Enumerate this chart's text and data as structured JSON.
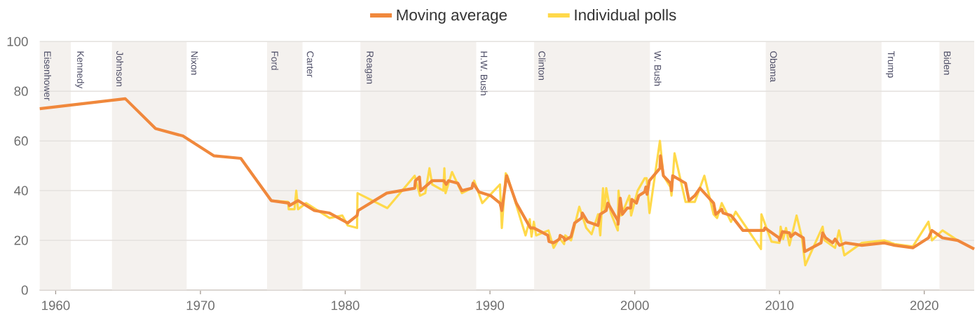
{
  "chart_data": {
    "type": "line",
    "xlim": [
      1958.9,
      2023.45
    ],
    "ylim": [
      0,
      100
    ],
    "xticks": [
      1960,
      1970,
      1980,
      1990,
      2000,
      2010,
      2020
    ],
    "yticks": [
      0,
      20,
      40,
      60,
      80,
      100
    ],
    "grid": "y",
    "legend": "top",
    "series": [
      {
        "name": "Moving average",
        "color": "#f0883c",
        "x": [
          1958.9,
          1964.81,
          1966.9,
          1968.79,
          1970.94,
          1972.79,
          1974.89,
          1976.1,
          1976.15,
          1976.74,
          1977.87,
          1978.92,
          1980.17,
          1980.82,
          1980.89,
          1982.87,
          1984.8,
          1984.85,
          1985.13,
          1985.21,
          1986.01,
          1986.82,
          1986.98,
          1987.14,
          1987.78,
          1988.06,
          1988.75,
          1988.83,
          1989.24,
          1990.05,
          1990.69,
          1990.82,
          1991.15,
          1991.82,
          1992.79,
          1993.03,
          1994.0,
          1994.08,
          1994.4,
          1994.8,
          1994.85,
          1995.12,
          1995.17,
          1995.6,
          1995.85,
          1996.33,
          1996.38,
          1996.74,
          1997.46,
          1997.62,
          1998.03,
          1998.14,
          1998.83,
          1998.85,
          1999.0,
          1999.15,
          1999.48,
          1999.72,
          1999.8,
          2000.12,
          2000.28,
          2000.69,
          2000.77,
          2000.85,
          2001.01,
          2001.74,
          2001.78,
          2001.98,
          2002.47,
          2002.54,
          2002.62,
          2003.51,
          2003.75,
          2004.15,
          2004.51,
          2005.45,
          2005.6,
          2006.01,
          2006.1,
          2006.65,
          2006.8,
          2007.47,
          2008.92,
          2008.99,
          2009.97,
          2010.0,
          2010.2,
          2010.69,
          2010.77,
          2011.09,
          2011.65,
          2011.74,
          2012.87,
          2012.98,
          2013.19,
          2013.67,
          2013.84,
          2014.16,
          2014.56,
          2015.69,
          2017.23,
          2017.95,
          2019.21,
          2020.29,
          2020.53,
          2021.26,
          2022.31,
          2023.45
        ],
        "values": [
          73,
          77,
          65,
          62,
          54,
          53,
          36,
          35,
          34,
          36,
          32,
          31,
          27,
          30,
          32,
          39,
          41,
          44,
          45.5,
          40,
          44,
          44,
          42.5,
          44,
          43,
          40,
          41,
          43,
          39.5,
          38,
          35,
          32,
          46,
          35,
          25,
          25,
          22,
          19.5,
          19,
          20.5,
          22,
          21,
          20,
          21.5,
          27,
          29,
          31,
          27.5,
          26,
          30.5,
          32,
          35,
          28,
          26.5,
          37,
          30.5,
          33,
          33,
          36.5,
          35,
          38,
          39.5,
          41.5,
          38.5,
          44,
          49,
          54,
          46,
          43,
          40,
          46,
          43,
          36,
          38,
          41,
          35,
          30.5,
          32.5,
          31,
          30,
          29,
          24,
          24,
          25,
          21,
          20,
          23.5,
          23,
          21.5,
          23,
          21,
          15.5,
          19,
          23,
          21,
          19,
          20.5,
          18,
          19,
          18,
          19,
          18,
          17,
          21,
          24,
          21,
          20,
          16.5
        ]
      },
      {
        "name": "Individual polls",
        "color": "#ffd94a",
        "x": [
          1974.89,
          1976.05,
          1976.1,
          1976.5,
          1976.62,
          1976.74,
          1977.3,
          1978.92,
          1979.8,
          1980.17,
          1980.82,
          1980.85,
          1982.91,
          1984.8,
          1985.17,
          1985.53,
          1985.82,
          1986.01,
          1986.78,
          1986.85,
          1986.93,
          1987.38,
          1988.06,
          1988.75,
          1988.91,
          1989.47,
          1990.69,
          1990.82,
          1991.09,
          1991.2,
          1992.46,
          1992.75,
          1992.87,
          1993.03,
          1993.19,
          1994.04,
          1994.4,
          1994.8,
          1995.12,
          1995.2,
          1995.6,
          1996.17,
          1996.65,
          1997.02,
          1997.47,
          1997.62,
          1997.81,
          1997.92,
          1998.03,
          1998.35,
          1998.83,
          1998.88,
          1999.07,
          1999.63,
          1999.75,
          2000.2,
          2000.69,
          2000.82,
          2001.02,
          2001.74,
          2001.98,
          2002.46,
          2002.54,
          2002.75,
          2003.51,
          2004.15,
          2004.81,
          2005.45,
          2005.69,
          2006.01,
          2006.65,
          2006.97,
          2008.72,
          2008.75,
          2009.45,
          2010.0,
          2010.08,
          2010.25,
          2010.45,
          2010.69,
          2011.18,
          2011.55,
          2011.78,
          2012.71,
          2012.98,
          2013.11,
          2013.84,
          2014.11,
          2014.48,
          2015.69,
          2017.23,
          2017.95,
          2019.21,
          2020.29,
          2020.53,
          2021.26,
          2022.31
        ],
        "values": [
          36,
          35.5,
          32.5,
          32.5,
          40,
          32.5,
          35,
          29,
          30,
          26,
          25,
          39,
          33,
          46,
          38,
          39,
          49,
          42.5,
          40,
          49,
          39,
          47.5,
          39,
          41,
          44,
          35,
          42.5,
          25,
          47,
          46,
          22,
          28.5,
          21.5,
          27.5,
          22,
          24,
          17,
          21,
          18.5,
          22,
          20,
          33.5,
          25,
          22.5,
          30.5,
          22,
          41,
          31.5,
          41,
          31,
          24,
          40,
          30,
          38,
          30,
          40,
          45,
          45,
          31,
          60,
          46,
          41.5,
          38,
          55,
          35.5,
          35.5,
          46,
          30.5,
          29,
          35,
          27.5,
          31.5,
          16.5,
          30.5,
          19.5,
          19,
          25.5,
          20.5,
          25,
          18,
          30,
          21,
          10,
          22,
          25.5,
          20,
          17,
          24,
          14,
          19,
          20,
          18.5,
          17.5,
          27.5,
          20,
          24,
          20
        ]
      }
    ],
    "bands": [
      {
        "axis": "x",
        "from": 1958.9,
        "to": 1961.05,
        "label": "Eisenhower",
        "color": "#f4f1ee"
      },
      {
        "axis": "x",
        "from": 1963.89,
        "to": 1969.05,
        "label": "Johnson",
        "color": "#f4f1ee"
      },
      {
        "axis": "x",
        "from": 1974.6,
        "to": 1977.05,
        "label": "Ford",
        "color": "#f4f1ee"
      },
      {
        "axis": "x",
        "from": 1981.05,
        "to": 1989.05,
        "label": "Reagan",
        "color": "#f4f1ee"
      },
      {
        "axis": "x",
        "from": 1993.05,
        "to": 2001.05,
        "label": "Clinton",
        "color": "#f4f1ee"
      },
      {
        "axis": "x",
        "from": 2009.05,
        "to": 2017.05,
        "label": "Obama",
        "color": "#f4f1ee"
      },
      {
        "axis": "x",
        "from": 2021.05,
        "to": 2023.45,
        "label": "Biden",
        "color": "#f4f1ee"
      }
    ],
    "annotations": [
      {
        "text": "Kennedy",
        "x": 1961.05,
        "y": 100
      },
      {
        "text": "Nixon",
        "x": 1969.05,
        "y": 100
      },
      {
        "text": "Carter",
        "x": 1977.05,
        "y": 100
      },
      {
        "text": "H.W. Bush",
        "x": 1989.05,
        "y": 100
      },
      {
        "text": "W. Bush",
        "x": 2001.05,
        "y": 100
      },
      {
        "text": "Trump",
        "x": 2017.05,
        "y": 100
      }
    ]
  }
}
